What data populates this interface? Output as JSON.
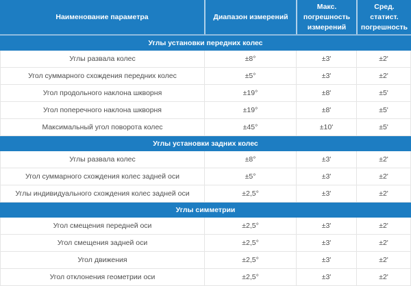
{
  "table": {
    "columns": [
      {
        "label": "Наименование параметра"
      },
      {
        "label": "Диапазон измерений"
      },
      {
        "label": "Макс. погрешность измерений"
      },
      {
        "label": "Сред. статист. погрешность"
      }
    ],
    "sections": [
      {
        "title": "Углы установки передних колес",
        "rows": [
          {
            "name": "Углы развала колес",
            "range": "±8°",
            "max_error": "±3'",
            "avg_error": "±2'"
          },
          {
            "name": "Угол суммарного схождения передних колес",
            "range": "±5°",
            "max_error": "±3'",
            "avg_error": "±2'"
          },
          {
            "name": "Угол продольного наклона шкворня",
            "range": "±19°",
            "max_error": "±8'",
            "avg_error": "±5'"
          },
          {
            "name": "Угол поперечного наклона шкворня",
            "range": "±19°",
            "max_error": "±8'",
            "avg_error": "±5'"
          },
          {
            "name": "Максимальный угол поворота колес",
            "range": "±45°",
            "max_error": "±10'",
            "avg_error": "±5'"
          }
        ]
      },
      {
        "title": "Углы установки задних колес",
        "rows": [
          {
            "name": "Углы развала колес",
            "range": "±8°",
            "max_error": "±3'",
            "avg_error": "±2'"
          },
          {
            "name": "Угол суммарного схождения колес задней оси",
            "range": "±5°",
            "max_error": "±3'",
            "avg_error": "±2'"
          },
          {
            "name": "Углы индивидуального схождения колес задней оси",
            "range": "±2,5°",
            "max_error": "±3'",
            "avg_error": "±2'"
          }
        ]
      },
      {
        "title": "Углы симметрии",
        "rows": [
          {
            "name": "Угол смещения передней оси",
            "range": "±2,5°",
            "max_error": "±3'",
            "avg_error": "±2'"
          },
          {
            "name": "Угол смещения задней оси",
            "range": "±2,5°",
            "max_error": "±3'",
            "avg_error": "±2'"
          },
          {
            "name": "Угол движения",
            "range": "±2,5°",
            "max_error": "±3'",
            "avg_error": "±2'"
          },
          {
            "name": "Угол отклонения геометрии оси",
            "range": "±2,5°",
            "max_error": "±3'",
            "avg_error": "±2'"
          }
        ]
      }
    ],
    "colors": {
      "header_blue": "#1d7dc2",
      "header_divider": "#8fbcdf",
      "row_border": "#e5e5e5",
      "cell_text": "#4d4d4d"
    }
  }
}
